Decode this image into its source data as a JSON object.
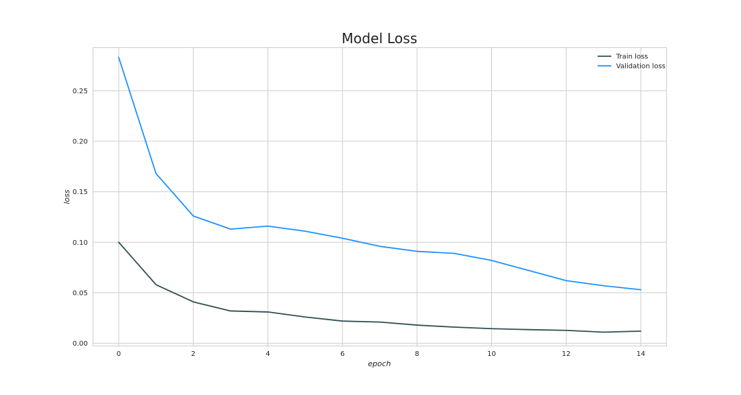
{
  "chart_data": {
    "type": "line",
    "title": "Model Loss",
    "xlabel": "epoch",
    "ylabel": "loss",
    "x": [
      0,
      1,
      2,
      3,
      4,
      5,
      6,
      7,
      8,
      9,
      10,
      11,
      12,
      13,
      14
    ],
    "xlim": [
      -0.7,
      14.7
    ],
    "ylim": [
      -0.003,
      0.293
    ],
    "xticks": [
      0,
      2,
      4,
      6,
      8,
      10,
      12,
      14
    ],
    "xtick_labels": [
      "0",
      "2",
      "4",
      "6",
      "8",
      "10",
      "12",
      "14"
    ],
    "yticks": [
      0.0,
      0.05,
      0.1,
      0.15,
      0.2,
      0.25
    ],
    "ytick_labels": [
      "0.00",
      "0.05",
      "0.10",
      "0.15",
      "0.20",
      "0.25"
    ],
    "grid": true,
    "legend_position": "top-right",
    "series": [
      {
        "name": "Train loss",
        "color": "#2f4f4f",
        "values": [
          0.1,
          0.058,
          0.041,
          0.032,
          0.031,
          0.026,
          0.022,
          0.021,
          0.018,
          0.016,
          0.0145,
          0.0135,
          0.0128,
          0.011,
          0.012
        ]
      },
      {
        "name": "Validation loss",
        "color": "#1e90ff",
        "values": [
          0.283,
          0.168,
          0.126,
          0.113,
          0.116,
          0.111,
          0.104,
          0.096,
          0.091,
          0.089,
          0.082,
          0.072,
          0.062,
          0.057,
          0.053
        ]
      }
    ]
  }
}
